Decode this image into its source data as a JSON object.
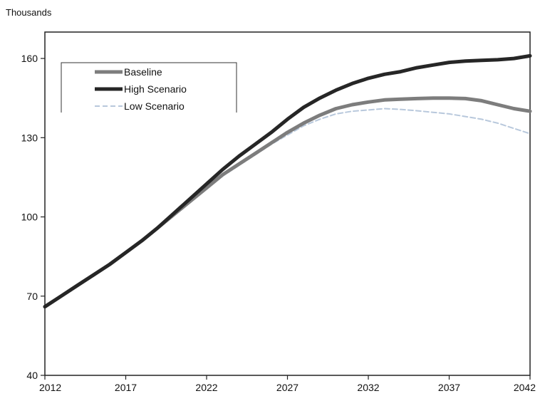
{
  "chart_data": {
    "type": "line",
    "title": "",
    "unit_label": "Thousands",
    "xlabel": "",
    "ylabel": "",
    "xlim": [
      2012,
      2042
    ],
    "ylim": [
      40,
      170
    ],
    "x_ticks": [
      2012,
      2017,
      2022,
      2027,
      2032,
      2037,
      2042
    ],
    "y_ticks": [
      40,
      70,
      100,
      130,
      160
    ],
    "grid": false,
    "legend_placement": "top-left",
    "x": [
      2012,
      2013,
      2014,
      2015,
      2016,
      2017,
      2018,
      2019,
      2020,
      2021,
      2022,
      2023,
      2024,
      2025,
      2026,
      2027,
      2028,
      2029,
      2030,
      2031,
      2032,
      2033,
      2034,
      2035,
      2036,
      2037,
      2038,
      2039,
      2040,
      2041,
      2042
    ],
    "series": [
      {
        "name": "Baseline",
        "color": "#7d7d7d",
        "values": [
          66,
          70,
          74,
          78,
          82,
          86.5,
          91,
          96,
          101,
          106,
          111,
          116,
          120,
          124,
          128,
          132,
          135.5,
          138.5,
          141,
          142.5,
          143.5,
          144.3,
          144.6,
          144.8,
          145,
          145,
          144.8,
          144,
          142.5,
          141,
          140
        ]
      },
      {
        "name": "High Scenario",
        "color": "#262626",
        "values": [
          66,
          70,
          74,
          78,
          82,
          86.5,
          91,
          96,
          101.5,
          107,
          112.5,
          118,
          123,
          127.5,
          132,
          137,
          141.5,
          145,
          148,
          150.5,
          152.5,
          154,
          155,
          156.5,
          157.5,
          158.5,
          159,
          159.3,
          159.5,
          160,
          161
        ]
      },
      {
        "name": "Low Scenario",
        "color": "#b8c8dc",
        "values": [
          66,
          70,
          74,
          78,
          82,
          86.5,
          91,
          96,
          101,
          106,
          111,
          115.5,
          119.5,
          123.5,
          127.5,
          131,
          134.5,
          137,
          139,
          140,
          140.5,
          141,
          140.7,
          140.2,
          139.6,
          139,
          138,
          137,
          135.5,
          133.5,
          131.5
        ]
      }
    ]
  }
}
